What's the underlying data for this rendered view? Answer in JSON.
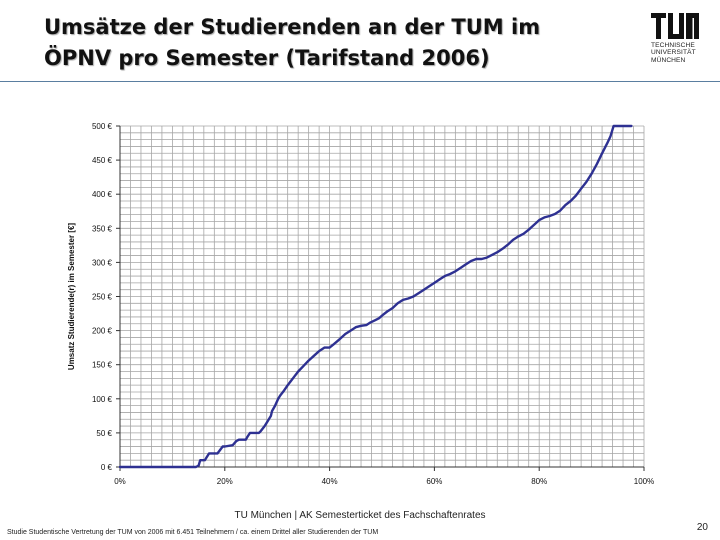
{
  "slide": {
    "title_line1": "Umsätze der Studierenden an der TUM im",
    "title_line2": "ÖPNV pro Semester (Tarifstand 2006)",
    "footer_center": "TU München | AK Semesterticket des Fachschaftenrates",
    "footer_note": "Studie Studentische Vertretung der TUM von 2006 mit 6.451 Teilnehmern / ca. einem Drittel aller Studierenden der TUM",
    "page_number": "20"
  },
  "logo": {
    "line1": "TECHNISCHE",
    "line2": "UNIVERSITÄT",
    "line3": "MÜNCHEN"
  },
  "colors": {
    "series": "#2e3192",
    "grid": "#a6a6a6",
    "accent_rule": "#5a7ea0"
  },
  "chart_data": {
    "type": "line",
    "title": "",
    "xlabel": "",
    "ylabel": "Umsatz Studierende(r) im Semester [€]",
    "xlim": [
      0,
      100
    ],
    "ylim": [
      0,
      500
    ],
    "x_ticks": [
      0,
      20,
      40,
      60,
      80,
      100
    ],
    "x_tick_labels": [
      "0%",
      "20%",
      "40%",
      "60%",
      "80%",
      "100%"
    ],
    "y_ticks": [
      0,
      50,
      100,
      150,
      200,
      250,
      300,
      350,
      400,
      450,
      500
    ],
    "y_tick_labels": [
      "0 €",
      "50 €",
      "100 €",
      "150 €",
      "200 €",
      "250 €",
      "300 €",
      "350 €",
      "400 €",
      "450 €",
      "500 €"
    ],
    "grid": true,
    "legend": "none",
    "series": [
      {
        "x": [
          0,
          14.5,
          15,
          15.3,
          16.2,
          16.5,
          17,
          18.6,
          19,
          19.6,
          20,
          21.5,
          22.2,
          22.7,
          24,
          24.3,
          24.8,
          26.5,
          26.8,
          27.6,
          28,
          28.8,
          29,
          29.6,
          30.2,
          30.6,
          31.3,
          32,
          32.6,
          33.3,
          34,
          35,
          36,
          37,
          38,
          39,
          40,
          40.8,
          42,
          43,
          44,
          45,
          46,
          47,
          47.8,
          48.6,
          49.4,
          50,
          51,
          52,
          53,
          54,
          55,
          56,
          57,
          58,
          59,
          60,
          61,
          62,
          63,
          64,
          65,
          66,
          67,
          68,
          69,
          70,
          71,
          72,
          73,
          74,
          75,
          76,
          77,
          78,
          79,
          80,
          81,
          82,
          83,
          84,
          85,
          86,
          87,
          88,
          89,
          90,
          91,
          92,
          93,
          93.6,
          94.2,
          94.8,
          95.4,
          96,
          96.6,
          97.2,
          97.6
        ],
        "values": [
          0,
          0,
          2,
          10,
          10,
          14,
          20,
          20,
          24,
          30,
          30,
          32,
          38,
          40,
          40,
          44,
          50,
          50,
          52,
          60,
          65,
          75,
          82,
          90,
          100,
          105,
          112,
          120,
          126,
          133,
          140,
          148,
          156,
          163,
          170,
          175,
          175,
          180,
          188,
          195,
          200,
          205,
          207,
          208,
          212,
          215,
          218,
          222,
          228,
          233,
          240,
          245,
          247,
          250,
          255,
          260,
          265,
          270,
          275,
          280,
          283,
          287,
          292,
          297,
          302,
          305,
          305,
          307,
          311,
          315,
          320,
          326,
          333,
          338,
          342,
          348,
          355,
          362,
          366,
          368,
          371,
          376,
          384,
          390,
          398,
          408,
          418,
          430,
          444,
          460,
          475,
          485,
          500,
          500,
          500,
          500,
          500,
          500,
          500
        ]
      }
    ]
  }
}
